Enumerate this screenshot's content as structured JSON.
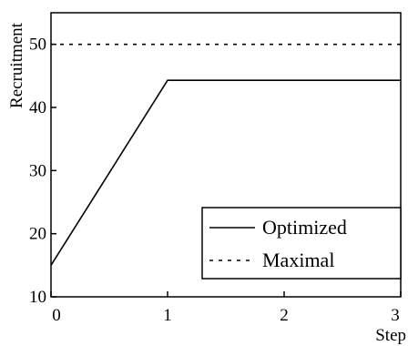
{
  "chart_data": {
    "type": "line",
    "title": "",
    "xlabel": "Step",
    "ylabel": "Recruitment",
    "xlim": [
      0,
      3
    ],
    "ylim": [
      10,
      55
    ],
    "x_ticks": [
      0,
      1,
      2,
      3
    ],
    "y_ticks": [
      10,
      20,
      30,
      40,
      50
    ],
    "x_tick_labels": [
      "0",
      "1",
      "2",
      "3"
    ],
    "y_tick_labels": [
      "10",
      "20",
      "30",
      "40",
      "50"
    ],
    "grid": false,
    "legend": {
      "position": "bottom-right"
    },
    "series": [
      {
        "name": "Optimized",
        "style": "solid",
        "x": [
          0,
          1,
          3
        ],
        "y": [
          15,
          44.3,
          44.3
        ]
      },
      {
        "name": "Maximal",
        "style": "dotted",
        "x": [
          0,
          3
        ],
        "y": [
          50,
          50
        ]
      }
    ]
  }
}
